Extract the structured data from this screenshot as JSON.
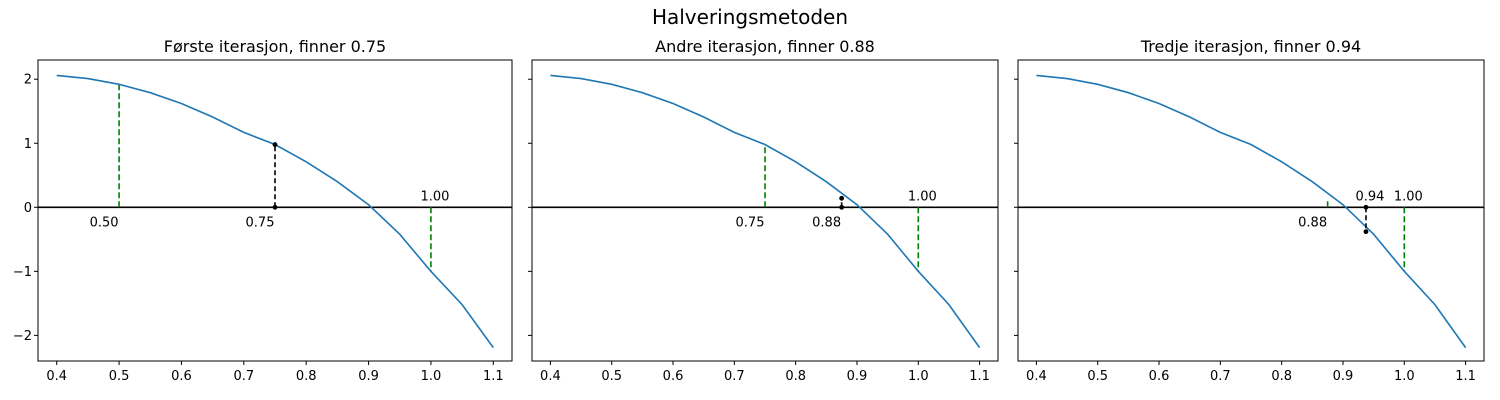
{
  "title": "Halveringsmetoden",
  "colors": {
    "curve": "#1f77b4",
    "bracket": "#008000",
    "midpoint": "#000000",
    "axis": "#000000"
  },
  "chart_data": [
    {
      "type": "line",
      "title": "Første iterasjon, finner 0.75",
      "xlabel": "",
      "ylabel": "",
      "xlim": [
        0.37,
        1.13
      ],
      "ylim": [
        -2.4,
        2.3
      ],
      "xticks": [
        "0.4",
        "0.5",
        "0.6",
        "0.7",
        "0.8",
        "0.9",
        "1.0",
        "1.1"
      ],
      "yticks": [
        "−2",
        "−1",
        "0",
        "1",
        "2"
      ],
      "show_y_tick_labels": true,
      "curve": {
        "x": [
          0.4,
          0.45,
          0.5,
          0.55,
          0.6,
          0.65,
          0.7,
          0.75,
          0.8,
          0.85,
          0.9,
          0.95,
          1.0,
          1.05,
          1.1
        ],
        "y": [
          2.06,
          2.01,
          1.92,
          1.79,
          1.62,
          1.41,
          1.17,
          0.98,
          0.71,
          0.4,
          0.04,
          -0.42,
          -1.0,
          -1.52,
          -2.19
        ]
      },
      "bracket_lines": [
        {
          "x": 0.5,
          "y": 1.92
        },
        {
          "x": 1.0,
          "y": -1.0
        }
      ],
      "midpoint": {
        "x": 0.75,
        "y": 0.98
      },
      "labels": [
        {
          "text": "0.50",
          "x": 0.5,
          "pos": "below-left"
        },
        {
          "text": "0.75",
          "x": 0.75,
          "pos": "below-left"
        },
        {
          "text": "1.00",
          "x": 1.0,
          "pos": "above"
        }
      ]
    },
    {
      "type": "line",
      "title": "Andre iterasjon, finner 0.88",
      "xlabel": "",
      "ylabel": "",
      "xlim": [
        0.37,
        1.13
      ],
      "ylim": [
        -2.4,
        2.3
      ],
      "xticks": [
        "0.4",
        "0.5",
        "0.6",
        "0.7",
        "0.8",
        "0.9",
        "1.0",
        "1.1"
      ],
      "yticks": [
        "−2",
        "−1",
        "0",
        "1",
        "2"
      ],
      "show_y_tick_labels": false,
      "curve": {
        "x": [
          0.4,
          0.45,
          0.5,
          0.55,
          0.6,
          0.65,
          0.7,
          0.75,
          0.8,
          0.85,
          0.9,
          0.95,
          1.0,
          1.05,
          1.1
        ],
        "y": [
          2.06,
          2.01,
          1.92,
          1.79,
          1.62,
          1.41,
          1.17,
          0.98,
          0.71,
          0.4,
          0.04,
          -0.42,
          -1.0,
          -1.52,
          -2.19
        ]
      },
      "bracket_lines": [
        {
          "x": 0.75,
          "y": 0.98
        },
        {
          "x": 1.0,
          "y": -1.0
        }
      ],
      "midpoint": {
        "x": 0.875,
        "y": 0.14
      },
      "labels": [
        {
          "text": "0.75",
          "x": 0.75,
          "pos": "below-left"
        },
        {
          "text": "0.88",
          "x": 0.875,
          "pos": "below-left"
        },
        {
          "text": "1.00",
          "x": 1.0,
          "pos": "above"
        }
      ]
    },
    {
      "type": "line",
      "title": "Tredje iterasjon, finner 0.94",
      "xlabel": "",
      "ylabel": "",
      "xlim": [
        0.37,
        1.13
      ],
      "ylim": [
        -2.4,
        2.3
      ],
      "xticks": [
        "0.4",
        "0.5",
        "0.6",
        "0.7",
        "0.8",
        "0.9",
        "1.0",
        "1.1"
      ],
      "yticks": [
        "−2",
        "−1",
        "0",
        "1",
        "2"
      ],
      "show_y_tick_labels": false,
      "curve": {
        "x": [
          0.4,
          0.45,
          0.5,
          0.55,
          0.6,
          0.65,
          0.7,
          0.75,
          0.8,
          0.85,
          0.9,
          0.95,
          1.0,
          1.05,
          1.1
        ],
        "y": [
          2.06,
          2.01,
          1.92,
          1.79,
          1.62,
          1.41,
          1.17,
          0.98,
          0.71,
          0.4,
          0.04,
          -0.42,
          -1.0,
          -1.52,
          -2.19
        ]
      },
      "bracket_lines": [
        {
          "x": 0.875,
          "y": 0.14
        },
        {
          "x": 1.0,
          "y": -1.0
        }
      ],
      "midpoint": {
        "x": 0.9375,
        "y": -0.38
      },
      "labels": [
        {
          "text": "0.88",
          "x": 0.875,
          "pos": "below-left"
        },
        {
          "text": "0.94",
          "x": 0.9375,
          "pos": "above"
        },
        {
          "text": "1.00",
          "x": 1.0,
          "pos": "above"
        }
      ]
    }
  ]
}
